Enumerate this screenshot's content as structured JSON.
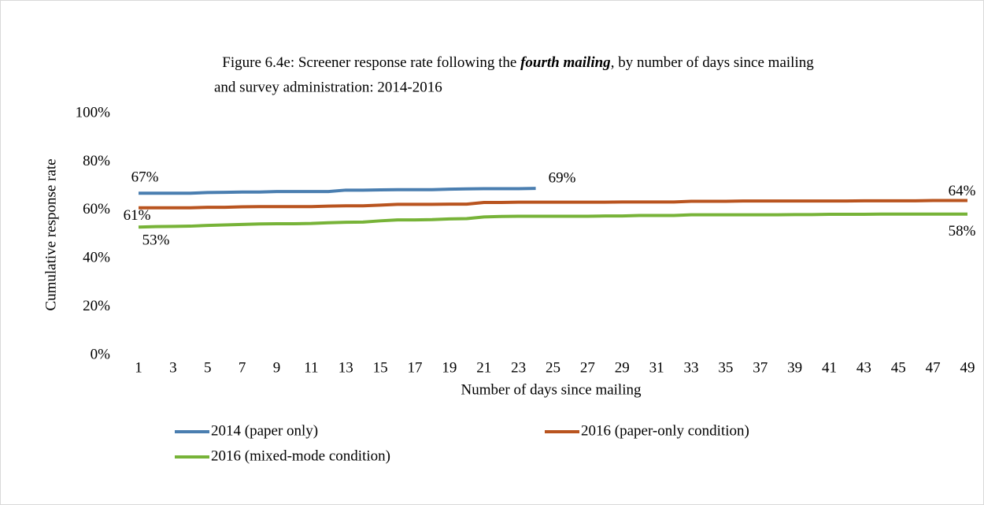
{
  "chart_data": {
    "type": "line",
    "title_parts": [
      "Figure 6.4e: Screener response rate following the ",
      "fourth mailing",
      ", by number of days since mailing",
      "and survey administration: 2014-2016"
    ],
    "y_label": "Cumulative response rate",
    "x_label": "Number of days since mailing",
    "categories": [
      "1",
      null,
      "3",
      null,
      "5",
      null,
      "7",
      null,
      "9",
      null,
      "11",
      null,
      "13",
      null,
      "15",
      null,
      "17",
      null,
      "19",
      null,
      "21",
      null,
      "23",
      null,
      "25",
      null,
      "27",
      null,
      "29",
      null,
      "31",
      null,
      "33",
      null,
      "35",
      null,
      "37",
      null,
      "39",
      null,
      "41",
      null,
      "43",
      null,
      "45",
      null,
      "47",
      null,
      "49"
    ],
    "ylim": [
      0,
      100
    ],
    "yticks": [
      {
        "value": 0,
        "label": "0%"
      },
      {
        "value": 20,
        "label": "20%"
      },
      {
        "value": 40,
        "label": "40%"
      },
      {
        "value": 60,
        "label": "60%"
      },
      {
        "value": 80,
        "label": "80%"
      },
      {
        "value": 100,
        "label": "100%"
      }
    ],
    "grid": false,
    "legend": "bottom",
    "series": [
      {
        "name": "2014 (paper only)",
        "color": "#4a7eb0",
        "values": [
          67,
          67,
          67,
          67,
          67.3,
          67.4,
          67.5,
          67.5,
          67.7,
          67.7,
          67.7,
          67.7,
          68.3,
          68.3,
          68.4,
          68.5,
          68.5,
          68.5,
          68.7,
          68.8,
          68.9,
          68.9,
          68.9,
          69,
          null,
          null,
          null,
          null,
          null,
          null,
          null,
          null,
          null,
          null,
          null,
          null,
          null,
          null,
          null,
          null,
          null,
          null,
          null,
          null,
          null,
          null,
          null,
          null,
          null
        ],
        "value_labels": [
          "67%",
          null,
          null,
          null,
          null,
          null,
          null,
          null,
          null,
          null,
          null,
          null,
          null,
          null,
          null,
          null,
          null,
          null,
          null,
          null,
          null,
          null,
          null,
          "69%",
          null,
          null,
          null,
          null,
          null,
          null,
          null,
          null,
          null,
          null,
          null,
          null,
          null,
          null,
          null,
          null,
          null,
          null,
          null,
          null,
          null,
          null,
          null,
          null,
          null
        ]
      },
      {
        "name": "2016 (paper-only condition)",
        "color": "#b9541f",
        "values": [
          61,
          61,
          61,
          61,
          61.2,
          61.2,
          61.4,
          61.5,
          61.5,
          61.5,
          61.5,
          61.7,
          61.8,
          61.8,
          62.1,
          62.4,
          62.4,
          62.4,
          62.5,
          62.5,
          63.2,
          63.2,
          63.3,
          63.3,
          63.3,
          63.3,
          63.3,
          63.3,
          63.4,
          63.4,
          63.4,
          63.4,
          63.7,
          63.7,
          63.7,
          63.8,
          63.8,
          63.8,
          63.8,
          63.8,
          63.8,
          63.8,
          63.9,
          63.9,
          63.9,
          63.9,
          64,
          64,
          64
        ],
        "value_labels": [
          "61%",
          null,
          null,
          null,
          null,
          null,
          null,
          null,
          null,
          null,
          null,
          null,
          null,
          null,
          null,
          null,
          null,
          null,
          null,
          null,
          null,
          null,
          null,
          null,
          null,
          null,
          null,
          null,
          null,
          null,
          null,
          null,
          null,
          null,
          null,
          null,
          null,
          null,
          null,
          null,
          null,
          null,
          null,
          null,
          null,
          null,
          null,
          null,
          "64%"
        ]
      },
      {
        "name": "2016 (mixed-mode condition)",
        "color": "#77b338",
        "values": [
          53,
          53.2,
          53.3,
          53.4,
          53.7,
          53.9,
          54.1,
          54.3,
          54.4,
          54.4,
          54.5,
          54.8,
          55,
          55.1,
          55.6,
          56,
          56,
          56.1,
          56.4,
          56.5,
          57.2,
          57.4,
          57.5,
          57.5,
          57.5,
          57.5,
          57.5,
          57.6,
          57.6,
          57.8,
          57.8,
          57.8,
          58.1,
          58.1,
          58.1,
          58.1,
          58.1,
          58.1,
          58.2,
          58.2,
          58.3,
          58.3,
          58.3,
          58.4,
          58.4,
          58.4,
          58.4,
          58.4,
          58.4
        ],
        "value_labels": [
          "53%",
          null,
          null,
          null,
          null,
          null,
          null,
          null,
          null,
          null,
          null,
          null,
          null,
          null,
          null,
          null,
          null,
          null,
          null,
          null,
          null,
          null,
          null,
          null,
          null,
          null,
          null,
          null,
          null,
          null,
          null,
          null,
          null,
          null,
          null,
          null,
          null,
          null,
          null,
          null,
          null,
          null,
          null,
          null,
          null,
          null,
          null,
          null,
          "58%"
        ]
      }
    ]
  }
}
